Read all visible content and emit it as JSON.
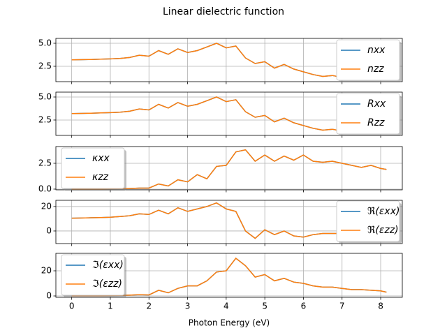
{
  "title": "Linear dielectric function",
  "chart_data": [
    {
      "type": "line",
      "legend": "upper right",
      "grid": true,
      "x": [
        0,
        0.25,
        0.5,
        0.75,
        1,
        1.25,
        1.5,
        1.75,
        2,
        2.25,
        2.5,
        2.75,
        3,
        3.25,
        3.5,
        3.75,
        4,
        4.25,
        4.5,
        4.75,
        5,
        5.25,
        5.5,
        5.75,
        6,
        6.25,
        6.5,
        6.75,
        7,
        7.25,
        7.5,
        7.75,
        8,
        8.15
      ],
      "xlim": [
        -0.41,
        8.56
      ],
      "xticks": [
        0,
        1,
        2,
        3,
        4,
        5,
        6,
        7,
        8
      ],
      "ylim": [
        0.83,
        5.53
      ],
      "yticks": [
        2.5,
        {
          "value": 5,
          "label": "5.0"
        }
      ],
      "series": [
        {
          "name": "nxx",
          "color": "#1f77b4",
          "values": [
            3.2,
            3.22,
            3.24,
            3.27,
            3.3,
            3.35,
            3.45,
            3.7,
            3.6,
            4.2,
            3.8,
            4.4,
            4.0,
            4.2,
            4.6,
            5.0,
            4.5,
            4.7,
            3.4,
            2.8,
            3.0,
            2.3,
            2.7,
            2.2,
            1.9,
            1.6,
            1.4,
            1.5,
            1.3,
            1.2,
            1.2,
            1.1,
            1.2,
            1.0
          ]
        },
        {
          "name": "nzz",
          "color": "#ff7f0e",
          "values": [
            3.2,
            3.22,
            3.24,
            3.27,
            3.3,
            3.35,
            3.45,
            3.7,
            3.6,
            4.2,
            3.8,
            4.4,
            4.0,
            4.2,
            4.6,
            5.0,
            4.5,
            4.7,
            3.4,
            2.8,
            3.0,
            2.3,
            2.7,
            2.2,
            1.9,
            1.6,
            1.4,
            1.5,
            1.3,
            1.2,
            1.2,
            1.1,
            1.2,
            1.0
          ]
        }
      ]
    },
    {
      "type": "line",
      "legend": "upper right",
      "grid": true,
      "x": [
        0,
        0.25,
        0.5,
        0.75,
        1,
        1.25,
        1.5,
        1.75,
        2,
        2.25,
        2.5,
        2.75,
        3,
        3.25,
        3.5,
        3.75,
        4,
        4.25,
        4.5,
        4.75,
        5,
        5.25,
        5.5,
        5.75,
        6,
        6.25,
        6.5,
        6.75,
        7,
        7.25,
        7.5,
        7.75,
        8,
        8.15
      ],
      "xlim": [
        -0.41,
        8.56
      ],
      "xticks": [
        0,
        1,
        2,
        3,
        4,
        5,
        6,
        7,
        8
      ],
      "ylim": [
        0.83,
        5.53
      ],
      "yticks": [
        2.5,
        {
          "value": 5,
          "label": "5.0"
        }
      ],
      "series": [
        {
          "name": "Rxx",
          "color": "#1f77b4",
          "values": [
            3.2,
            3.22,
            3.24,
            3.27,
            3.3,
            3.35,
            3.45,
            3.7,
            3.6,
            4.2,
            3.8,
            4.4,
            4.0,
            4.2,
            4.6,
            5.0,
            4.5,
            4.7,
            3.4,
            2.8,
            3.0,
            2.3,
            2.7,
            2.2,
            1.9,
            1.6,
            1.4,
            1.5,
            1.3,
            1.2,
            1.2,
            1.1,
            1.2,
            1.0
          ]
        },
        {
          "name": "Rzz",
          "color": "#ff7f0e",
          "values": [
            3.2,
            3.22,
            3.24,
            3.27,
            3.3,
            3.35,
            3.45,
            3.7,
            3.6,
            4.2,
            3.8,
            4.4,
            4.0,
            4.2,
            4.6,
            5.0,
            4.5,
            4.7,
            3.4,
            2.8,
            3.0,
            2.3,
            2.7,
            2.2,
            1.9,
            1.6,
            1.4,
            1.5,
            1.3,
            1.2,
            1.2,
            1.1,
            1.2,
            1.0
          ]
        }
      ]
    },
    {
      "type": "line",
      "legend": "upper left",
      "grid": true,
      "x": [
        0,
        0.25,
        0.5,
        0.75,
        1,
        1.25,
        1.5,
        1.75,
        2,
        2.25,
        2.5,
        2.75,
        3,
        3.25,
        3.5,
        3.75,
        4,
        4.25,
        4.5,
        4.75,
        5,
        5.25,
        5.5,
        5.75,
        6,
        6.25,
        6.5,
        6.75,
        7,
        7.25,
        7.5,
        7.75,
        8,
        8.15
      ],
      "xlim": [
        -0.41,
        8.56
      ],
      "xticks": [
        0,
        1,
        2,
        3,
        4,
        5,
        6,
        7,
        8
      ],
      "ylim": [
        -0.07,
        4.12
      ],
      "yticks": [
        {
          "value": 0,
          "label": "0.0"
        },
        2.5
      ],
      "series": [
        {
          "name": "κxx",
          "color": "#1f77b4",
          "values": [
            0.02,
            0.02,
            0.02,
            0.02,
            0.03,
            0.04,
            0.06,
            0.1,
            0.1,
            0.5,
            0.3,
            0.9,
            0.7,
            1.4,
            1.0,
            2.2,
            2.3,
            3.6,
            3.8,
            2.7,
            3.3,
            2.7,
            3.2,
            2.8,
            3.3,
            2.7,
            2.6,
            2.7,
            2.5,
            2.3,
            2.1,
            2.3,
            2.0,
            1.9
          ]
        },
        {
          "name": "κzz",
          "color": "#ff7f0e",
          "values": [
            0.02,
            0.02,
            0.02,
            0.02,
            0.03,
            0.04,
            0.06,
            0.1,
            0.1,
            0.5,
            0.3,
            0.9,
            0.7,
            1.4,
            1.0,
            2.2,
            2.3,
            3.6,
            3.8,
            2.7,
            3.3,
            2.7,
            3.2,
            2.8,
            3.3,
            2.7,
            2.6,
            2.7,
            2.5,
            2.3,
            2.1,
            2.3,
            2.0,
            1.9
          ]
        }
      ]
    },
    {
      "type": "line",
      "legend": "lower right",
      "grid": true,
      "x": [
        0,
        0.25,
        0.5,
        0.75,
        1,
        1.25,
        1.5,
        1.75,
        2,
        2.25,
        2.5,
        2.75,
        3,
        3.25,
        3.5,
        3.75,
        4,
        4.25,
        4.5,
        4.75,
        5,
        5.25,
        5.5,
        5.75,
        6,
        6.25,
        6.5,
        6.75,
        7,
        7.25,
        7.5,
        7.75,
        8,
        8.15
      ],
      "xlim": [
        -0.41,
        8.56
      ],
      "xticks": [
        0,
        1,
        2,
        3,
        4,
        5,
        6,
        7,
        8
      ],
      "ylim": [
        -10.3,
        25.1
      ],
      "yticks": [
        0,
        20
      ],
      "series": [
        {
          "name": "ℜ(εxx)",
          "color": "#1f77b4",
          "values": [
            10.5,
            10.6,
            10.8,
            11,
            11.2,
            11.8,
            12.5,
            14,
            13.5,
            17,
            14,
            19,
            16,
            18,
            20,
            23,
            18,
            16,
            0,
            -6,
            1,
            -3,
            0,
            -4,
            -5,
            -3,
            -2,
            -2,
            -2,
            -1.5,
            -1,
            -1,
            -1,
            -1.5
          ]
        },
        {
          "name": "ℜ(εzz)",
          "color": "#ff7f0e",
          "values": [
            10.5,
            10.6,
            10.8,
            11,
            11.2,
            11.8,
            12.5,
            14,
            13.5,
            17,
            14,
            19,
            16,
            18,
            20,
            23,
            18,
            16,
            0,
            -6,
            1,
            -3,
            0,
            -4,
            -5,
            -3,
            -2,
            -2,
            -2,
            -1.5,
            -1,
            -1,
            -1,
            -1.5
          ]
        }
      ]
    },
    {
      "type": "line",
      "legend": "upper left",
      "grid": true,
      "x": [
        0,
        0.25,
        0.5,
        0.75,
        1,
        1.25,
        1.5,
        1.75,
        2,
        2.25,
        2.5,
        2.75,
        3,
        3.25,
        3.5,
        3.75,
        4,
        4.25,
        4.5,
        4.75,
        5,
        5.25,
        5.5,
        5.75,
        6,
        6.25,
        6.5,
        6.75,
        7,
        7.25,
        7.5,
        7.75,
        8,
        8.15
      ],
      "xlim": [
        -0.41,
        8.56
      ],
      "xticks": [
        0,
        1,
        2,
        3,
        4,
        5,
        6,
        7,
        8
      ],
      "xlabel": "Photon Energy (eV)",
      "ylim": [
        -1.1,
        33.9
      ],
      "yticks": [
        0,
        20
      ],
      "series": [
        {
          "name": "ℑ(εxx)",
          "color": "#1f77b4",
          "values": [
            0.2,
            0.2,
            0.2,
            0.2,
            0.3,
            0.4,
            0.6,
            1,
            0.8,
            4.5,
            2.5,
            6,
            8,
            8,
            12,
            19,
            20,
            30,
            24,
            15,
            17,
            12,
            14,
            11,
            10,
            8,
            7,
            7,
            6,
            5,
            5,
            4.5,
            4,
            3
          ]
        },
        {
          "name": "ℑ(εzz)",
          "color": "#ff7f0e",
          "values": [
            0.2,
            0.2,
            0.2,
            0.2,
            0.3,
            0.4,
            0.6,
            1,
            0.8,
            4.5,
            2.5,
            6,
            8,
            8,
            12,
            19,
            20,
            30,
            24,
            15,
            17,
            12,
            14,
            11,
            10,
            8,
            7,
            7,
            6,
            5,
            5,
            4.5,
            4,
            3
          ]
        }
      ]
    }
  ]
}
